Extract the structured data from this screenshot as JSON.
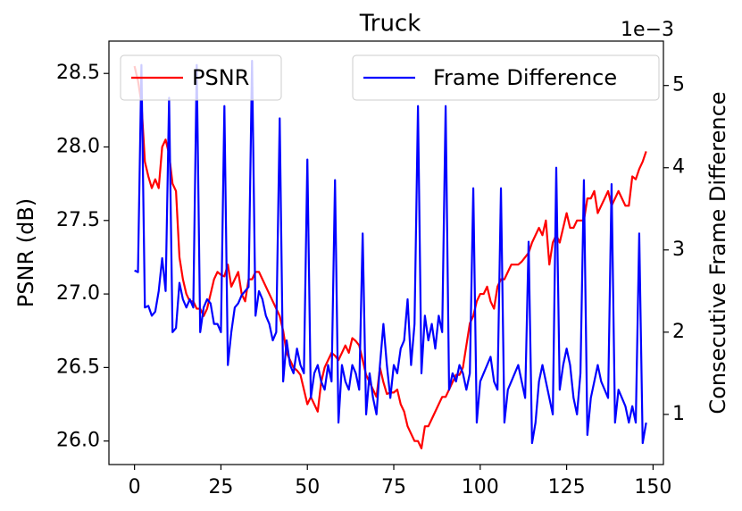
{
  "chart_data": {
    "type": "line",
    "title": "Truck",
    "ylabel": "PSNR (dB)",
    "y2label": "Consecutive Frame Difference",
    "y2_offset": "1e−3",
    "x": [
      0,
      1,
      2,
      3,
      4,
      5,
      6,
      7,
      8,
      9,
      10,
      11,
      12,
      13,
      14,
      15,
      16,
      17,
      18,
      19,
      20,
      21,
      22,
      23,
      24,
      25,
      26,
      27,
      28,
      29,
      30,
      31,
      32,
      33,
      34,
      35,
      36,
      37,
      38,
      39,
      40,
      41,
      42,
      43,
      44,
      45,
      46,
      47,
      48,
      49,
      50,
      51,
      52,
      53,
      54,
      55,
      56,
      57,
      58,
      59,
      60,
      61,
      62,
      63,
      64,
      65,
      66,
      67,
      68,
      69,
      70,
      71,
      72,
      73,
      74,
      75,
      76,
      77,
      78,
      79,
      80,
      81,
      82,
      83,
      84,
      85,
      86,
      87,
      88,
      89,
      90,
      91,
      92,
      93,
      94,
      95,
      96,
      97,
      98,
      99,
      100,
      101,
      102,
      103,
      104,
      105,
      106,
      107,
      108,
      109,
      110,
      111,
      112,
      113,
      114,
      115,
      116,
      117,
      118,
      119,
      120,
      121,
      122,
      123,
      124,
      125,
      126,
      127,
      128,
      129,
      130,
      131,
      132,
      133,
      134,
      135,
      136,
      137,
      138,
      139,
      140,
      141,
      142,
      143,
      144,
      145,
      146,
      147,
      148
    ],
    "xlim": [
      -7.4,
      153
    ],
    "xticks": [
      0,
      25,
      50,
      75,
      100,
      125,
      150
    ],
    "ylim": [
      25.84,
      28.72
    ],
    "yticks": [
      {
        "value": 26,
        "label": "26.0"
      },
      26.5,
      {
        "value": 27,
        "label": "27.0"
      },
      27.5,
      {
        "value": 28,
        "label": "28.0"
      },
      28.5
    ],
    "y2lim": [
      0.39,
      5.54
    ],
    "y2ticks": [
      1,
      2,
      3,
      4,
      5
    ],
    "series": [
      {
        "name": "PSNR",
        "color": "#ff0000",
        "legend": "upper left",
        "values": [
          28.55,
          28.45,
          28.3,
          27.9,
          27.8,
          27.72,
          27.78,
          27.72,
          28.0,
          28.05,
          27.95,
          27.75,
          27.7,
          27.25,
          27.1,
          27.0,
          26.95,
          26.95,
          26.9,
          26.9,
          26.85,
          26.9,
          27.0,
          27.1,
          27.15,
          27.13,
          27.12,
          27.2,
          27.05,
          27.1,
          27.15,
          27.0,
          26.95,
          27.1,
          27.1,
          27.15,
          27.15,
          27.1,
          27.05,
          27.0,
          26.95,
          26.9,
          26.85,
          26.75,
          26.6,
          26.55,
          26.5,
          26.48,
          26.45,
          26.35,
          26.25,
          26.3,
          26.25,
          26.2,
          26.4,
          26.5,
          26.55,
          26.6,
          26.58,
          26.55,
          26.6,
          26.65,
          26.6,
          26.7,
          26.68,
          26.65,
          26.55,
          26.45,
          26.4,
          26.35,
          26.3,
          26.5,
          26.4,
          26.32,
          26.33,
          26.33,
          26.35,
          26.25,
          26.2,
          26.1,
          26.05,
          26.0,
          26.0,
          25.95,
          26.1,
          26.1,
          26.15,
          26.2,
          26.25,
          26.3,
          26.3,
          26.35,
          26.4,
          26.45,
          26.45,
          26.5,
          26.65,
          26.8,
          26.85,
          26.95,
          27.0,
          27.0,
          27.05,
          26.95,
          26.9,
          27.05,
          27.1,
          27.1,
          27.15,
          27.2,
          27.2,
          27.2,
          27.22,
          27.25,
          27.28,
          27.35,
          27.4,
          27.45,
          27.4,
          27.5,
          27.2,
          27.35,
          27.4,
          27.35,
          27.45,
          27.55,
          27.45,
          27.45,
          27.5,
          27.5,
          27.5,
          27.65,
          27.65,
          27.7,
          27.55,
          27.6,
          27.65,
          27.7,
          27.6,
          27.65,
          27.7,
          27.65,
          27.6,
          27.6,
          27.8,
          27.78,
          27.85,
          27.9,
          27.97
        ]
      },
      {
        "name": "Frame Difference",
        "color": "#0000ff",
        "axis": "y2",
        "legend": "upper right",
        "values": [
          2.75,
          2.73,
          5.25,
          2.3,
          2.32,
          2.2,
          2.25,
          2.5,
          2.9,
          2.5,
          4.85,
          2.0,
          2.05,
          2.6,
          2.4,
          2.3,
          2.4,
          2.3,
          5.25,
          2.0,
          2.3,
          2.4,
          2.35,
          2.1,
          2.1,
          2.0,
          4.75,
          1.6,
          2.0,
          2.3,
          2.35,
          2.45,
          2.5,
          2.55,
          5.3,
          2.2,
          2.5,
          2.4,
          2.2,
          2.1,
          1.9,
          2.0,
          4.6,
          1.4,
          1.9,
          1.6,
          1.5,
          1.8,
          1.6,
          1.5,
          4.1,
          1.2,
          1.5,
          1.6,
          1.4,
          1.3,
          1.6,
          1.4,
          3.85,
          0.9,
          1.6,
          1.4,
          1.3,
          1.6,
          1.5,
          1.3,
          3.2,
          1.0,
          1.5,
          1.2,
          1.0,
          1.6,
          2.1,
          1.6,
          1.2,
          1.6,
          1.5,
          1.8,
          1.9,
          2.4,
          1.6,
          2.1,
          4.75,
          1.5,
          2.2,
          1.9,
          2.1,
          1.8,
          2.2,
          2.0,
          4.75,
          1.3,
          1.5,
          1.4,
          1.6,
          1.5,
          1.3,
          1.5,
          3.75,
          0.9,
          1.4,
          1.5,
          1.6,
          1.7,
          1.4,
          1.3,
          3.75,
          0.9,
          1.3,
          1.4,
          1.5,
          1.6,
          1.4,
          1.2,
          3.1,
          0.65,
          0.9,
          1.4,
          1.6,
          1.4,
          1.2,
          1.0,
          4.0,
          1.3,
          1.6,
          1.8,
          1.6,
          1.2,
          1.0,
          1.5,
          3.85,
          0.75,
          1.2,
          1.4,
          1.6,
          1.4,
          1.3,
          1.2,
          3.8,
          0.9,
          1.3,
          1.2,
          1.1,
          0.9,
          1.1,
          0.9,
          3.2,
          0.65,
          0.9
        ]
      }
    ]
  }
}
